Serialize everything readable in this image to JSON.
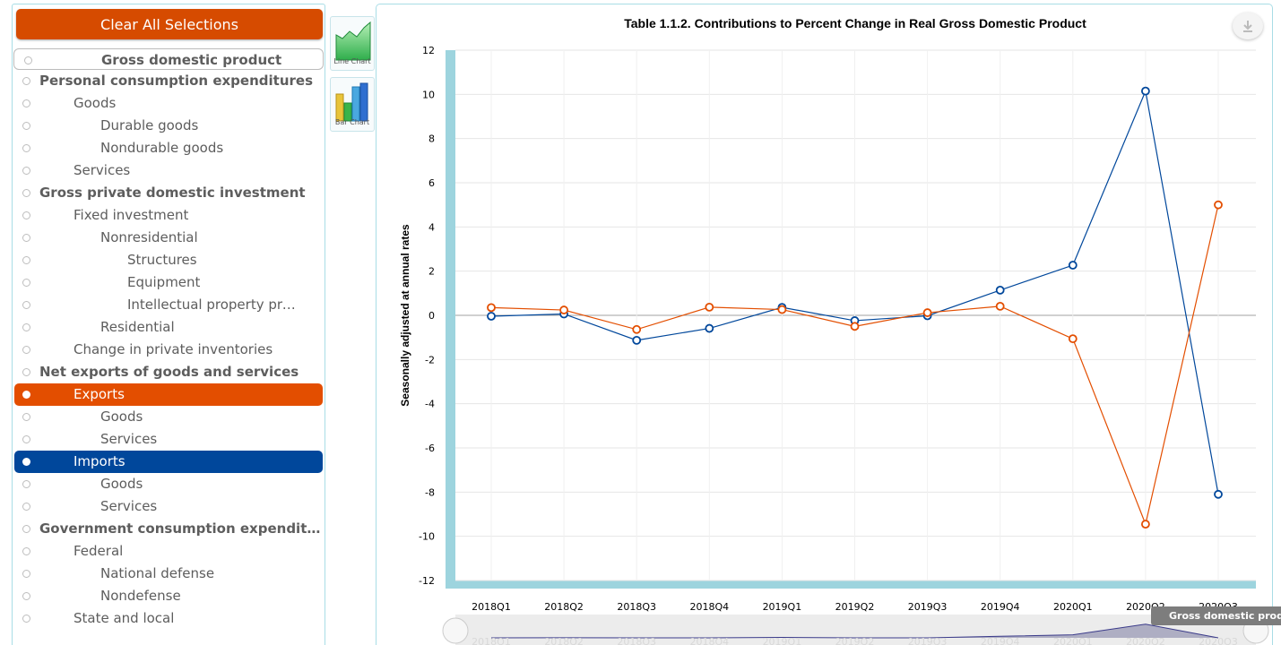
{
  "controls": {
    "clear_label": "Clear All Selections",
    "line_chart_label": "Line Chart",
    "bar_chart_label": "Bar Chart"
  },
  "tree": [
    {
      "label": "Gross domestic product",
      "level": 0,
      "style": "root"
    },
    {
      "label": "Personal consumption expenditures",
      "level": 0,
      "style": "bold"
    },
    {
      "label": "Goods",
      "level": 1
    },
    {
      "label": "Durable goods",
      "level": 2
    },
    {
      "label": "Nondurable goods",
      "level": 2
    },
    {
      "label": "Services",
      "level": 1
    },
    {
      "label": "Gross private domestic investment",
      "level": 0,
      "style": "bold"
    },
    {
      "label": "Fixed investment",
      "level": 1
    },
    {
      "label": "Nonresidential",
      "level": 2
    },
    {
      "label": "Structures",
      "level": 3
    },
    {
      "label": "Equipment",
      "level": 3
    },
    {
      "label": "Intellectual property prod…",
      "level": 3
    },
    {
      "label": "Residential",
      "level": 2
    },
    {
      "label": "Change in private inventories",
      "level": 1
    },
    {
      "label": "Net exports of goods and services",
      "level": 0,
      "style": "bold"
    },
    {
      "label": "Exports",
      "level": 1,
      "style": "sel-orange"
    },
    {
      "label": "Goods",
      "level": 2
    },
    {
      "label": "Services",
      "level": 2
    },
    {
      "label": "Imports",
      "level": 1,
      "style": "sel-blue"
    },
    {
      "label": "Goods",
      "level": 2
    },
    {
      "label": "Services",
      "level": 2
    },
    {
      "label": "Government consumption expenditur…",
      "level": 0,
      "style": "bold"
    },
    {
      "label": "Federal",
      "level": 1
    },
    {
      "label": "National defense",
      "level": 2
    },
    {
      "label": "Nondefense",
      "level": 2
    },
    {
      "label": "State and local",
      "level": 1
    }
  ],
  "tooltip": "Gross domestic product",
  "colors": {
    "exports": "#e34e00",
    "imports": "#00479b",
    "axis_band": "#9dd4de"
  },
  "chart_data": {
    "type": "line",
    "title": "Table 1.1.2. Contributions to Percent Change in Real Gross Domestic Product",
    "ylabel": "Seasonally adjusted at annual rates",
    "xlabel": "",
    "ylim": [
      -12,
      12
    ],
    "yticks": [
      12,
      10,
      8,
      6,
      4,
      2,
      0,
      -2,
      -4,
      -6,
      -8,
      -10,
      -12
    ],
    "categories": [
      "2018Q1",
      "2018Q2",
      "2018Q3",
      "2018Q4",
      "2019Q1",
      "2019Q2",
      "2019Q3",
      "2019Q4",
      "2020Q1",
      "2020Q2",
      "2020Q3"
    ],
    "grid": true,
    "series": [
      {
        "color": "#00479b",
        "values": [
          -0.04,
          0.06,
          -1.13,
          -0.59,
          0.36,
          -0.24,
          -0.02,
          1.14,
          2.27,
          10.15,
          -8.1
        ]
      },
      {
        "color": "#e34e00",
        "values": [
          0.35,
          0.24,
          -0.64,
          0.37,
          0.26,
          -0.5,
          0.12,
          0.41,
          -1.06,
          -9.45,
          5.0
        ]
      }
    ]
  }
}
